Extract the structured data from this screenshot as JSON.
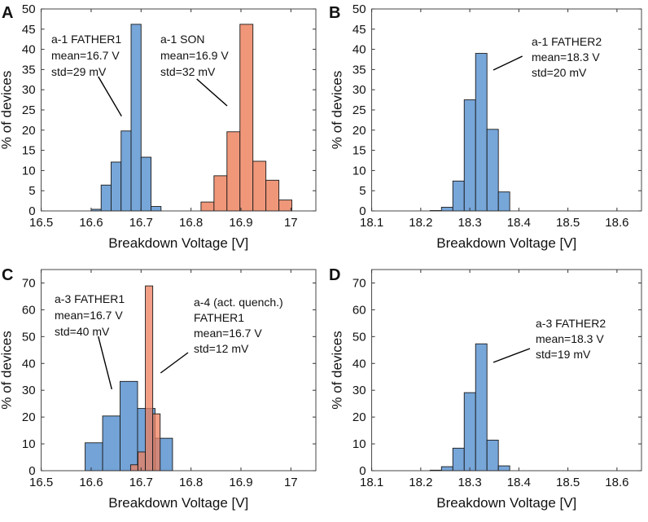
{
  "chart_data": [
    {
      "panel": "A",
      "type": "bar",
      "xlabel": "Breakdown Voltage [V]",
      "ylabel": "% of devices",
      "xlim": [
        16.5,
        17.05
      ],
      "ylim": [
        0,
        50
      ],
      "xticks": [
        16.5,
        16.6,
        16.7,
        16.8,
        16.9,
        17
      ],
      "xtick_labels": [
        "16.5",
        "16.6",
        "16.7",
        "16.8",
        "16.9",
        "17"
      ],
      "yticks": [
        0,
        5,
        10,
        15,
        20,
        25,
        30,
        35,
        40,
        45,
        50
      ],
      "ytick_labels": [
        "0",
        "5",
        "10",
        "15",
        "20",
        "25",
        "30",
        "35",
        "40",
        "45",
        "50"
      ],
      "series": [
        {
          "name": "a-1 FATHER1",
          "color": "#77a6d9",
          "bin_start": 16.6,
          "bin_width": 0.02,
          "values": [
            0.4,
            6.4,
            12.1,
            19.8,
            46.2,
            13.3,
            1.1
          ],
          "annotation": [
            "a-1 FATHER1",
            "mean=16.7 V",
            "std=29 mV"
          ]
        },
        {
          "name": "a-1 SON",
          "color": "#f0977a",
          "bin_start": 16.82,
          "bin_width": 0.026,
          "values": [
            2.2,
            8.7,
            19.6,
            46.2,
            12.3,
            7.6,
            2.7
          ],
          "annotation": [
            "a-1 SON",
            "mean=16.9 V",
            "std=32 mV"
          ]
        }
      ]
    },
    {
      "panel": "B",
      "type": "bar",
      "xlabel": "Breakdown Voltage [V]",
      "ylabel": "% of devices",
      "xlim": [
        18.1,
        18.65
      ],
      "ylim": [
        0,
        50
      ],
      "xticks": [
        18.1,
        18.2,
        18.3,
        18.4,
        18.5,
        18.6
      ],
      "xtick_labels": [
        "18.1",
        "18.2",
        "18.3",
        "18.4",
        "18.5",
        "18.6"
      ],
      "yticks": [
        0,
        5,
        10,
        15,
        20,
        25,
        30,
        35,
        40,
        45,
        50
      ],
      "ytick_labels": [
        "0",
        "5",
        "10",
        "15",
        "20",
        "25",
        "30",
        "35",
        "40",
        "45",
        "50"
      ],
      "series": [
        {
          "name": "a-1 FATHER2",
          "color": "#77a6d9",
          "bin_start": 18.219,
          "bin_width": 0.0232,
          "values": [
            0.1,
            0.9,
            7.4,
            27.5,
            39.0,
            20.2,
            4.7
          ],
          "annotation": [
            "a-1 FATHER2",
            "mean=18.3 V",
            "std=20 mV"
          ]
        }
      ]
    },
    {
      "panel": "C",
      "type": "bar",
      "xlabel": "Breakdown Voltage [V]",
      "ylabel": "% of devices",
      "xlim": [
        16.5,
        17.05
      ],
      "ylim": [
        0,
        75
      ],
      "xticks": [
        16.5,
        16.6,
        16.7,
        16.8,
        16.9,
        17
      ],
      "xtick_labels": [
        "16.5",
        "16.6",
        "16.7",
        "16.8",
        "16.9",
        "17"
      ],
      "yticks": [
        0,
        10,
        20,
        30,
        40,
        50,
        60,
        70
      ],
      "ytick_labels": [
        "0",
        "10",
        "20",
        "30",
        "40",
        "50",
        "60",
        "70"
      ],
      "series": [
        {
          "name": "a-3 FATHER1",
          "color": "#5b93d0",
          "bin_start": 16.588,
          "bin_width": 0.035,
          "values": [
            10.4,
            20.4,
            33.3,
            23.2,
            12.1
          ],
          "annotation": [
            "a-3 FATHER1",
            "mean=16.7 V",
            "std=40 mV"
          ]
        },
        {
          "name": "a-4 (act. quench.) FATHER1",
          "color": "#ee7f5e",
          "bin_start": 16.679,
          "bin_width": 0.0148,
          "values": [
            2.2,
            7.0,
            68.9,
            21.2
          ],
          "annotation": [
            "a-4 (act. quench.)",
            "FATHER1",
            "mean=16.7 V",
            "std=12 mV"
          ]
        }
      ]
    },
    {
      "panel": "D",
      "type": "bar",
      "xlabel": "Breakdown Voltage [V]",
      "ylabel": "% of devices",
      "xlim": [
        18.1,
        18.65
      ],
      "ylim": [
        0,
        75
      ],
      "xticks": [
        18.1,
        18.2,
        18.3,
        18.4,
        18.5,
        18.6
      ],
      "xtick_labels": [
        "18.1",
        "18.2",
        "18.3",
        "18.4",
        "18.5",
        "18.6"
      ],
      "yticks": [
        0,
        10,
        20,
        30,
        40,
        50,
        60,
        70
      ],
      "ytick_labels": [
        "0",
        "10",
        "20",
        "30",
        "40",
        "50",
        "60",
        "70"
      ],
      "series": [
        {
          "name": "a-3 FATHER2",
          "color": "#77a6d9",
          "bin_start": 18.219,
          "bin_width": 0.0232,
          "values": [
            0.2,
            1.5,
            8.4,
            29.1,
            47.3,
            11.4,
            1.8
          ],
          "annotation": [
            "a-3 FATHER2",
            "mean=18.3 V",
            "std=19 mV"
          ]
        }
      ]
    }
  ]
}
